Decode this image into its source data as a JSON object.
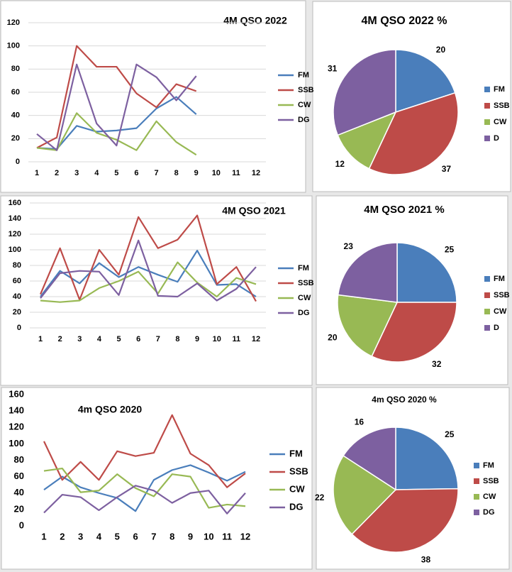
{
  "chart_data": [
    {
      "type": "line",
      "title": "4M QSO 2022",
      "categories": [
        "1",
        "2",
        "3",
        "4",
        "5",
        "6",
        "7",
        "8",
        "9",
        "10",
        "11",
        "12"
      ],
      "ylim": [
        0,
        120
      ],
      "yticks": [
        0,
        20,
        40,
        60,
        80,
        100,
        120
      ],
      "grid": true,
      "series": [
        {
          "name": "FM",
          "color": "#4a7ebb",
          "values": [
            12,
            11,
            31,
            26,
            27,
            29,
            46,
            56,
            41,
            null,
            null,
            null
          ]
        },
        {
          "name": "SSB",
          "color": "#be4b48",
          "values": [
            12,
            21,
            100,
            82,
            82,
            59,
            47,
            67,
            61,
            null,
            null,
            null
          ]
        },
        {
          "name": "CW",
          "color": "#98b954",
          "values": [
            12,
            10,
            42,
            25,
            19,
            10,
            35,
            17,
            6,
            null,
            null,
            null
          ]
        },
        {
          "name": "DG",
          "color": "#7d60a0",
          "values": [
            24,
            10,
            84,
            33,
            14,
            84,
            73,
            53,
            74,
            null,
            null,
            null
          ]
        }
      ]
    },
    {
      "type": "pie",
      "title": "4M QSO 2022 %",
      "categories": [
        "FM",
        "SSB",
        "CW",
        "D"
      ],
      "values": [
        20,
        37,
        12,
        31
      ],
      "colors": [
        "#4a7ebb",
        "#be4b48",
        "#98b954",
        "#7d60a0"
      ]
    },
    {
      "type": "line",
      "title": "4M QSO 2021",
      "categories": [
        "1",
        "2",
        "3",
        "4",
        "5",
        "6",
        "7",
        "8",
        "9",
        "10",
        "11",
        "12"
      ],
      "ylim": [
        0,
        160
      ],
      "yticks": [
        0,
        20,
        40,
        60,
        80,
        100,
        120,
        140,
        160
      ],
      "grid": true,
      "series": [
        {
          "name": "FM",
          "color": "#4a7ebb",
          "values": [
            40,
            73,
            57,
            83,
            65,
            78,
            68,
            59,
            99,
            55,
            56,
            40
          ]
        },
        {
          "name": "SSB",
          "color": "#be4b48",
          "values": [
            43,
            102,
            36,
            100,
            68,
            142,
            102,
            113,
            144,
            56,
            78,
            34
          ]
        },
        {
          "name": "CW",
          "color": "#98b954",
          "values": [
            35,
            33,
            35,
            51,
            60,
            72,
            44,
            84,
            58,
            40,
            64,
            56
          ]
        },
        {
          "name": "DG",
          "color": "#7d60a0",
          "values": [
            38,
            70,
            73,
            72,
            42,
            112,
            41,
            40,
            57,
            35,
            50,
            78
          ]
        }
      ]
    },
    {
      "type": "pie",
      "title": "4M QSO 2021 %",
      "categories": [
        "FM",
        "SSB",
        "CW",
        "D"
      ],
      "values": [
        25,
        32,
        20,
        23
      ],
      "colors": [
        "#4a7ebb",
        "#be4b48",
        "#98b954",
        "#7d60a0"
      ]
    },
    {
      "type": "line",
      "title": "4m QSO 2020",
      "categories": [
        "1",
        "2",
        "3",
        "4",
        "5",
        "6",
        "7",
        "8",
        "9",
        "10",
        "11",
        "12"
      ],
      "ylim": [
        0,
        160
      ],
      "yticks": [
        0,
        20,
        40,
        60,
        80,
        100,
        120,
        140,
        160
      ],
      "grid": false,
      "series": [
        {
          "name": "FM",
          "color": "#4a7ebb",
          "values": [
            44,
            60,
            47,
            40,
            34,
            18,
            56,
            68,
            74,
            65,
            55,
            66
          ]
        },
        {
          "name": "SSB",
          "color": "#be4b48",
          "values": [
            103,
            56,
            78,
            56,
            91,
            85,
            89,
            135,
            88,
            74,
            47,
            64
          ]
        },
        {
          "name": "CW",
          "color": "#98b954",
          "values": [
            67,
            70,
            41,
            43,
            63,
            46,
            36,
            63,
            60,
            22,
            26,
            24
          ]
        },
        {
          "name": "DG",
          "color": "#7d60a0",
          "values": [
            16,
            38,
            35,
            19,
            35,
            49,
            43,
            28,
            40,
            43,
            15,
            40
          ]
        }
      ]
    },
    {
      "type": "pie",
      "title": "4m QSO 2020 %",
      "categories": [
        "FM",
        "SSB",
        "CW",
        "DG"
      ],
      "values": [
        25,
        38,
        22,
        16
      ],
      "colors": [
        "#4a7ebb",
        "#be4b48",
        "#98b954",
        "#7d60a0"
      ]
    }
  ]
}
